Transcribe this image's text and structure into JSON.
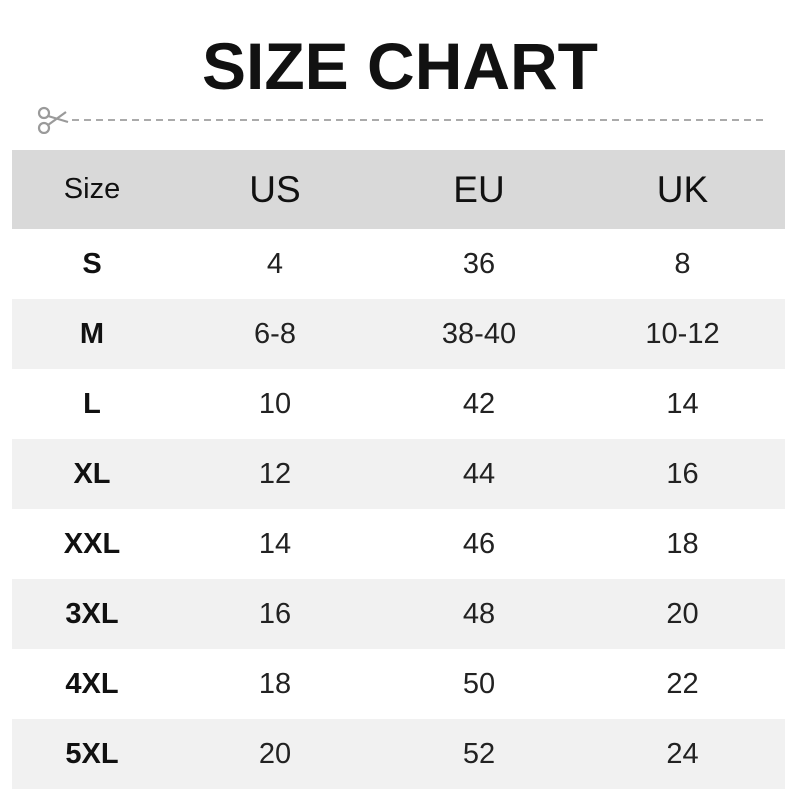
{
  "title": "SIZE CHART",
  "icons": {
    "cut_line": "scissors-icon"
  },
  "colors": {
    "header_bg": "#d9d9d9",
    "alt_row_bg": "#f1f1f1",
    "text": "#111111",
    "cut_line": "#aaaaaa"
  },
  "chart_data": {
    "type": "table",
    "title": "SIZE CHART",
    "columns": [
      "Size",
      "US",
      "EU",
      "UK"
    ],
    "rows": [
      [
        "S",
        "4",
        "36",
        "8"
      ],
      [
        "M",
        "6-8",
        "38-40",
        "10-12"
      ],
      [
        "L",
        "10",
        "42",
        "14"
      ],
      [
        "XL",
        "12",
        "44",
        "16"
      ],
      [
        "XXL",
        "14",
        "46",
        "18"
      ],
      [
        "3XL",
        "16",
        "48",
        "20"
      ],
      [
        "4XL",
        "18",
        "50",
        "22"
      ],
      [
        "5XL",
        "20",
        "52",
        "24"
      ]
    ]
  }
}
